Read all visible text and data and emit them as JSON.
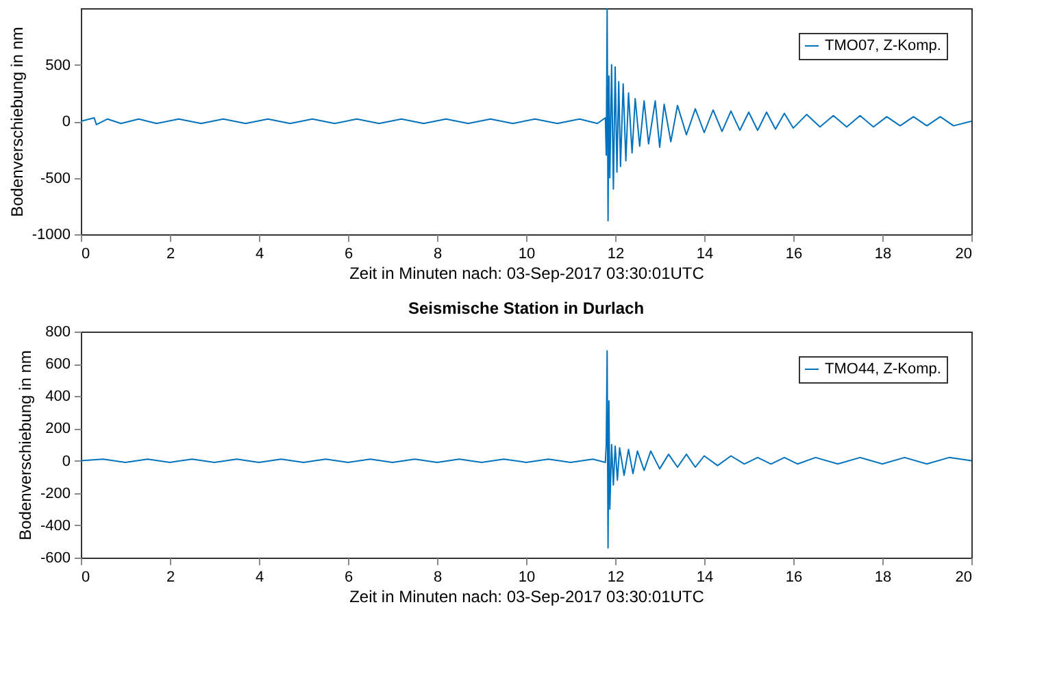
{
  "chart_data": [
    {
      "type": "line",
      "xlabel": "Zeit in Minuten nach: 03-Sep-2017 03:30:01UTC",
      "ylabel": "Bodenverschiebung in nm",
      "xlim": [
        0,
        20
      ],
      "xticks": [
        0,
        2,
        4,
        6,
        8,
        10,
        12,
        14,
        16,
        18,
        20
      ],
      "ylim": [
        -1000,
        1000
      ],
      "yticks": [
        -1000,
        -500,
        0,
        500
      ],
      "grid": false,
      "legend": "top right",
      "marker": "none",
      "line_style": "solid",
      "series": [
        {
          "name": "TMO07, Z-Komp.",
          "color": "#0072bd",
          "x": [
            0,
            0.3,
            0.35,
            0.6,
            0.9,
            1.3,
            1.7,
            2.2,
            2.7,
            3.2,
            3.7,
            4.2,
            4.7,
            5.2,
            5.7,
            6.2,
            6.7,
            7.2,
            7.7,
            8.2,
            8.7,
            9.2,
            9.7,
            10.2,
            10.7,
            11.2,
            11.6,
            11.78,
            11.8,
            11.82,
            11.84,
            11.86,
            11.88,
            11.92,
            11.96,
            12.0,
            12.04,
            12.08,
            12.12,
            12.18,
            12.24,
            12.3,
            12.38,
            12.45,
            12.55,
            12.65,
            12.75,
            12.9,
            13.0,
            13.1,
            13.25,
            13.4,
            13.6,
            13.8,
            14.0,
            14.2,
            14.4,
            14.6,
            14.8,
            15.0,
            15.2,
            15.4,
            15.6,
            15.8,
            16.0,
            16.3,
            16.6,
            16.9,
            17.2,
            17.5,
            17.8,
            18.1,
            18.4,
            18.7,
            19.0,
            19.3,
            19.6,
            20.0
          ],
          "values": [
            0,
            30,
            -30,
            20,
            -20,
            20,
            -20,
            20,
            -20,
            20,
            -20,
            20,
            -20,
            20,
            -20,
            20,
            -20,
            20,
            -20,
            20,
            -20,
            20,
            -20,
            20,
            -20,
            20,
            -20,
            30,
            -300,
            1000,
            -880,
            400,
            -500,
            500,
            -600,
            480,
            -450,
            350,
            -400,
            330,
            -350,
            250,
            -280,
            200,
            -220,
            180,
            -200,
            180,
            -230,
            150,
            -180,
            140,
            -120,
            110,
            -100,
            100,
            -90,
            90,
            -80,
            80,
            -80,
            80,
            -70,
            70,
            -60,
            60,
            -50,
            50,
            -50,
            50,
            -50,
            40,
            -40,
            40,
            -40,
            40,
            -40,
            0
          ]
        }
      ]
    },
    {
      "type": "line",
      "title": "Seismische Station in Durlach",
      "xlabel": "Zeit in Minuten nach: 03-Sep-2017 03:30:01UTC",
      "ylabel": "Bodenverschiebung in nm",
      "xlim": [
        0,
        20
      ],
      "xticks": [
        0,
        2,
        4,
        6,
        8,
        10,
        12,
        14,
        16,
        18,
        20
      ],
      "ylim": [
        -600,
        800
      ],
      "yticks": [
        -600,
        -400,
        -200,
        0,
        200,
        400,
        600,
        800
      ],
      "grid": false,
      "legend": "top right",
      "marker": "none",
      "line_style": "solid",
      "series": [
        {
          "name": "TMO44, Z-Komp.",
          "color": "#0072bd",
          "x": [
            0,
            0.5,
            1.0,
            1.5,
            2.0,
            2.5,
            3.0,
            3.5,
            4.0,
            4.5,
            5.0,
            5.5,
            6.0,
            6.5,
            7.0,
            7.5,
            8.0,
            8.5,
            9.0,
            9.5,
            10.0,
            10.5,
            11.0,
            11.5,
            11.78,
            11.8,
            11.82,
            11.84,
            11.86,
            11.88,
            11.92,
            11.96,
            12.0,
            12.05,
            12.1,
            12.2,
            12.3,
            12.4,
            12.5,
            12.65,
            12.8,
            13.0,
            13.2,
            13.4,
            13.6,
            13.8,
            14.0,
            14.3,
            14.6,
            14.9,
            15.2,
            15.5,
            15.8,
            16.1,
            16.5,
            17.0,
            17.5,
            18.0,
            18.5,
            19.0,
            19.5,
            20.0
          ],
          "values": [
            0,
            10,
            -10,
            10,
            -10,
            10,
            -10,
            10,
            -10,
            10,
            -10,
            10,
            -10,
            10,
            -10,
            10,
            -10,
            10,
            -10,
            10,
            -10,
            10,
            -10,
            10,
            -10,
            100,
            680,
            -540,
            370,
            -300,
            100,
            -150,
            90,
            -120,
            80,
            -90,
            70,
            -80,
            60,
            -60,
            60,
            -50,
            40,
            -40,
            40,
            -40,
            30,
            -30,
            30,
            -20,
            20,
            -20,
            20,
            -20,
            20,
            -20,
            20,
            -20,
            20,
            -20,
            20,
            0
          ]
        }
      ]
    }
  ]
}
